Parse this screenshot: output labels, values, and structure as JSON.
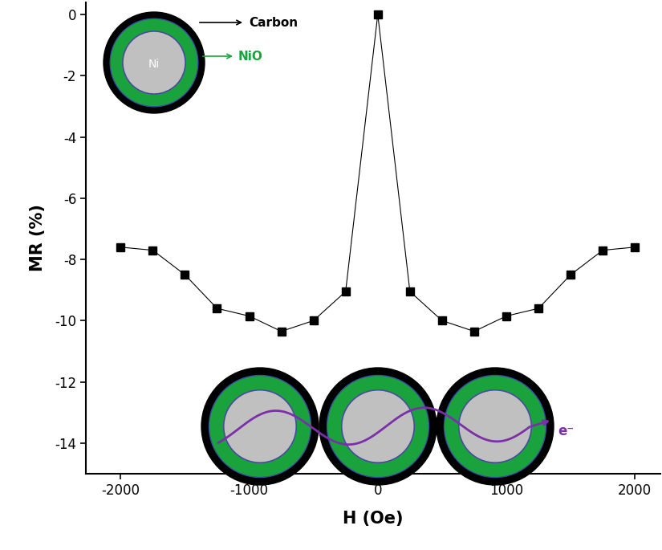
{
  "chart_data": {
    "type": "line",
    "x": [
      -2000,
      -1750,
      -1500,
      -1250,
      -1000,
      -750,
      -500,
      -250,
      0,
      250,
      500,
      750,
      1000,
      1250,
      1500,
      1750,
      2000
    ],
    "values": [
      -7.6,
      -7.7,
      -8.5,
      -9.6,
      -9.85,
      -10.35,
      -10.0,
      -9.05,
      0,
      -9.05,
      -10.0,
      -10.35,
      -9.85,
      -9.6,
      -8.5,
      -7.7,
      -7.6
    ],
    "color": "#000000",
    "marker": "square",
    "line_style": "solid",
    "xlabel": "H (Oe)",
    "ylabel": "MR (%)",
    "xlim": [
      -2270,
      2200
    ],
    "ylim": [
      -15,
      0.4
    ],
    "xticks": [
      -2000,
      -1000,
      0,
      1000,
      2000
    ],
    "yticks": [
      -14,
      -12,
      -10,
      -8,
      -6,
      -4,
      -2,
      0
    ],
    "annotations": [
      "Carbon",
      "NiO",
      "Ni",
      "e⁻"
    ]
  }
}
